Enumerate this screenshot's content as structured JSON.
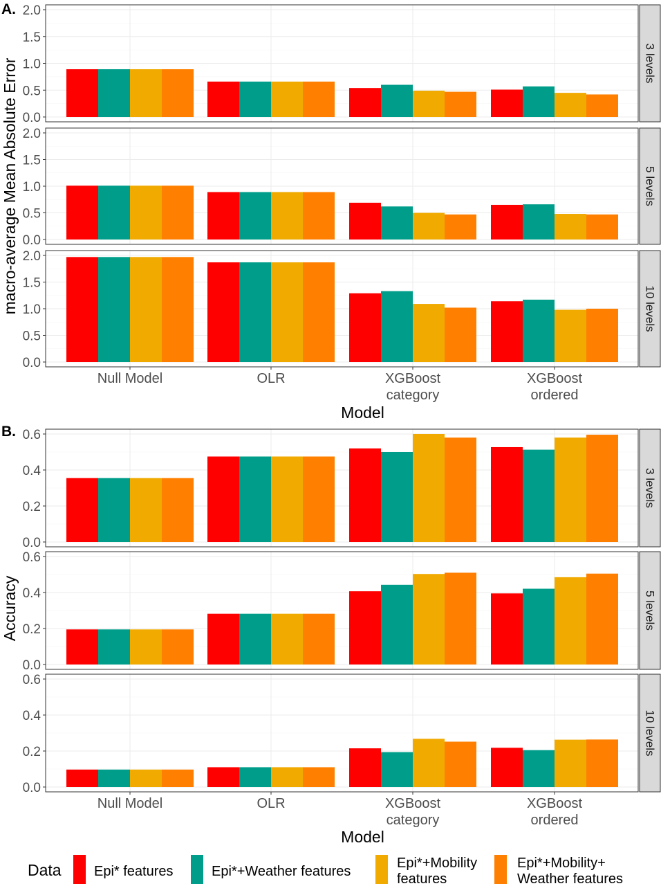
{
  "chart_data": [
    {
      "tag": "A.",
      "type": "bar",
      "xlabel": "Model",
      "ylabel": "macro-average Mean Absolute Error",
      "categories": [
        [
          "Null Model"
        ],
        [
          "OLR"
        ],
        [
          "XGBoost",
          "category"
        ],
        [
          "XGBoost",
          "ordered"
        ]
      ],
      "ylim": [
        0,
        2.0
      ],
      "yticks": [
        "0.0",
        "0.5",
        "1.0",
        "1.5",
        "2.0"
      ],
      "facets": [
        {
          "label": "3 levels",
          "series": [
            {
              "name": "Epi* features",
              "values": [
                0.89,
                0.66,
                0.54,
                0.51
              ]
            },
            {
              "name": "Epi*+Weather features",
              "values": [
                0.89,
                0.66,
                0.6,
                0.57
              ]
            },
            {
              "name": "Epi*+Mobility features",
              "values": [
                0.89,
                0.66,
                0.49,
                0.45
              ]
            },
            {
              "name": "Epi*+Mobility+ Weather features",
              "values": [
                0.89,
                0.66,
                0.47,
                0.42
              ]
            }
          ]
        },
        {
          "label": "5 levels",
          "series": [
            {
              "name": "Epi* features",
              "values": [
                1.01,
                0.89,
                0.69,
                0.65
              ]
            },
            {
              "name": "Epi*+Weather features",
              "values": [
                1.01,
                0.89,
                0.62,
                0.66
              ]
            },
            {
              "name": "Epi*+Mobility features",
              "values": [
                1.01,
                0.89,
                0.5,
                0.48
              ]
            },
            {
              "name": "Epi*+Mobility+ Weather features",
              "values": [
                1.01,
                0.89,
                0.47,
                0.47
              ]
            }
          ]
        },
        {
          "label": "10 levels",
          "series": [
            {
              "name": "Epi* features",
              "values": [
                1.97,
                1.87,
                1.29,
                1.14
              ]
            },
            {
              "name": "Epi*+Weather features",
              "values": [
                1.97,
                1.87,
                1.33,
                1.17
              ]
            },
            {
              "name": "Epi*+Mobility features",
              "values": [
                1.97,
                1.87,
                1.09,
                0.98
              ]
            },
            {
              "name": "Epi*+Mobility+ Weather features",
              "values": [
                1.97,
                1.87,
                1.02,
                1.0
              ]
            }
          ]
        }
      ]
    },
    {
      "tag": "B.",
      "type": "bar",
      "xlabel": "Model",
      "ylabel": "Accuracy",
      "categories": [
        [
          "Null Model"
        ],
        [
          "OLR"
        ],
        [
          "XGBoost",
          "category"
        ],
        [
          "XGBoost",
          "ordered"
        ]
      ],
      "ylim": [
        0,
        0.6
      ],
      "yticks": [
        "0.0",
        "0.2",
        "0.4",
        "0.6"
      ],
      "facets": [
        {
          "label": "3 levels",
          "series": [
            {
              "name": "Epi* features",
              "values": [
                0.355,
                0.475,
                0.52,
                0.527
              ]
            },
            {
              "name": "Epi*+Weather features",
              "values": [
                0.355,
                0.475,
                0.5,
                0.513
              ]
            },
            {
              "name": "Epi*+Mobility features",
              "values": [
                0.355,
                0.475,
                0.6,
                0.58
              ]
            },
            {
              "name": "Epi*+Mobility+ Weather features",
              "values": [
                0.355,
                0.475,
                0.58,
                0.596
              ]
            }
          ]
        },
        {
          "label": "5 levels",
          "series": [
            {
              "name": "Epi* features",
              "values": [
                0.195,
                0.282,
                0.407,
                0.395
              ]
            },
            {
              "name": "Epi*+Weather features",
              "values": [
                0.195,
                0.282,
                0.443,
                0.421
              ]
            },
            {
              "name": "Epi*+Mobility features",
              "values": [
                0.195,
                0.282,
                0.503,
                0.485
              ]
            },
            {
              "name": "Epi*+Mobility+ Weather features",
              "values": [
                0.195,
                0.282,
                0.51,
                0.505
              ]
            }
          ]
        },
        {
          "label": "10 levels",
          "series": [
            {
              "name": "Epi* features",
              "values": [
                0.097,
                0.11,
                0.215,
                0.218
              ]
            },
            {
              "name": "Epi*+Weather features",
              "values": [
                0.097,
                0.11,
                0.194,
                0.205
              ]
            },
            {
              "name": "Epi*+Mobility features",
              "values": [
                0.097,
                0.11,
                0.268,
                0.263
              ]
            },
            {
              "name": "Epi*+Mobility+ Weather features",
              "values": [
                0.097,
                0.11,
                0.252,
                0.264
              ]
            }
          ]
        }
      ]
    }
  ],
  "legend": {
    "title": "Data",
    "position": "bottom",
    "items": [
      {
        "lines": [
          "Epi* features"
        ],
        "color": "#ff0000"
      },
      {
        "lines": [
          "Epi*+Weather features"
        ],
        "color": "#009e8a"
      },
      {
        "lines": [
          "Epi*+Mobility",
          "features"
        ],
        "color": "#f0aa00"
      },
      {
        "lines": [
          "Epi*+Mobility+",
          "Weather features"
        ],
        "color": "#ff8000"
      }
    ]
  },
  "colors": {
    "Epi* features": "#ff0000",
    "Epi*+Weather features": "#009e8a",
    "Epi*+Mobility features": "#f0aa00",
    "Epi*+Mobility+ Weather features": "#ff8000"
  }
}
